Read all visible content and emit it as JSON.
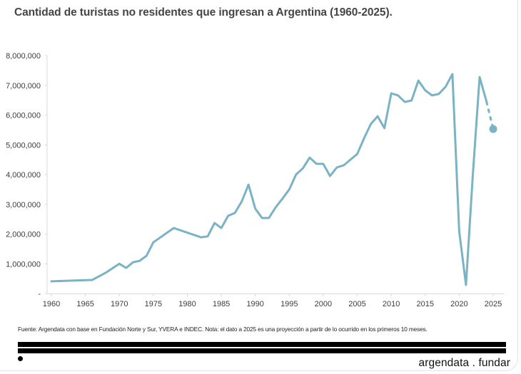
{
  "title": "Cantidad de turistas no residentes que ingresan a Argentina (1960-2025).",
  "footnote": "Fuente: Argendata con base en Fundación Norte y Sur, YVERA e INDEC. Nota: el dato a 2025 es una proyección a partir de lo ocurrido en los primeros 10 meses.",
  "brand": "argendata . fundar",
  "colors": {
    "line": "#7ab3c4",
    "axis": "#d9d9d9",
    "bars": "#000000"
  },
  "chart_data": {
    "type": "line",
    "title": "Cantidad de turistas no residentes que ingresan a Argentina (1960-2025).",
    "xlabel": "",
    "ylabel": "",
    "xlim": [
      1960,
      2025
    ],
    "ylim": [
      0,
      8000000
    ],
    "grid": false,
    "legend": "none",
    "x_ticks": [
      "1960",
      "1965",
      "1970",
      "1975",
      "1980",
      "1985",
      "1990",
      "1995",
      "2000",
      "2005",
      "2010",
      "2015",
      "2020",
      "2025"
    ],
    "y_ticks": [
      "-",
      "1,000,000",
      "2,000,000",
      "3,000,000",
      "4,000,000",
      "5,000,000",
      "6,000,000",
      "7,000,000",
      "8,000,000"
    ],
    "y_tick_values": [
      0,
      1000000,
      2000000,
      3000000,
      4000000,
      5000000,
      6000000,
      7000000,
      8000000
    ],
    "x_tick_values": [
      1960,
      1965,
      1970,
      1975,
      1980,
      1985,
      1990,
      1995,
      2000,
      2005,
      2010,
      2015,
      2020,
      2025
    ],
    "series": [
      {
        "name": "Turistas no residentes",
        "style": "solid",
        "x": [
          1960,
          1966,
          1968,
          1970,
          1971,
          1972,
          1973,
          1974,
          1975,
          1978,
          1982,
          1983,
          1984,
          1985,
          1986,
          1987,
          1988,
          1989,
          1990,
          1991,
          1992,
          1993,
          1994,
          1995,
          1996,
          1997,
          1998,
          1999,
          2000,
          2001,
          2002,
          2003,
          2004,
          2005,
          2006,
          2007,
          2008,
          2009,
          2010,
          2011,
          2012,
          2013,
          2014,
          2015,
          2016,
          2017,
          2018,
          2019,
          2020,
          2021,
          2022,
          2023,
          2024
        ],
        "values": [
          410000,
          455000,
          700000,
          1000000,
          860000,
          1050000,
          1100000,
          1270000,
          1720000,
          2200000,
          1890000,
          1920000,
          2370000,
          2200000,
          2610000,
          2710000,
          3090000,
          3660000,
          2850000,
          2540000,
          2540000,
          2900000,
          3190000,
          3500000,
          4000000,
          4210000,
          4570000,
          4360000,
          4360000,
          3950000,
          4240000,
          4310000,
          4500000,
          4690000,
          5220000,
          5700000,
          5960000,
          5560000,
          6730000,
          6660000,
          6440000,
          6490000,
          7160000,
          6830000,
          6660000,
          6710000,
          6950000,
          7380000,
          2090000,
          290000,
          3950000,
          7280000,
          6470000
        ]
      },
      {
        "name": "Proyección 2025",
        "style": "dashed",
        "x": [
          2024,
          2025
        ],
        "values": [
          6470000,
          5530000
        ],
        "end_marker": "circle"
      }
    ]
  }
}
